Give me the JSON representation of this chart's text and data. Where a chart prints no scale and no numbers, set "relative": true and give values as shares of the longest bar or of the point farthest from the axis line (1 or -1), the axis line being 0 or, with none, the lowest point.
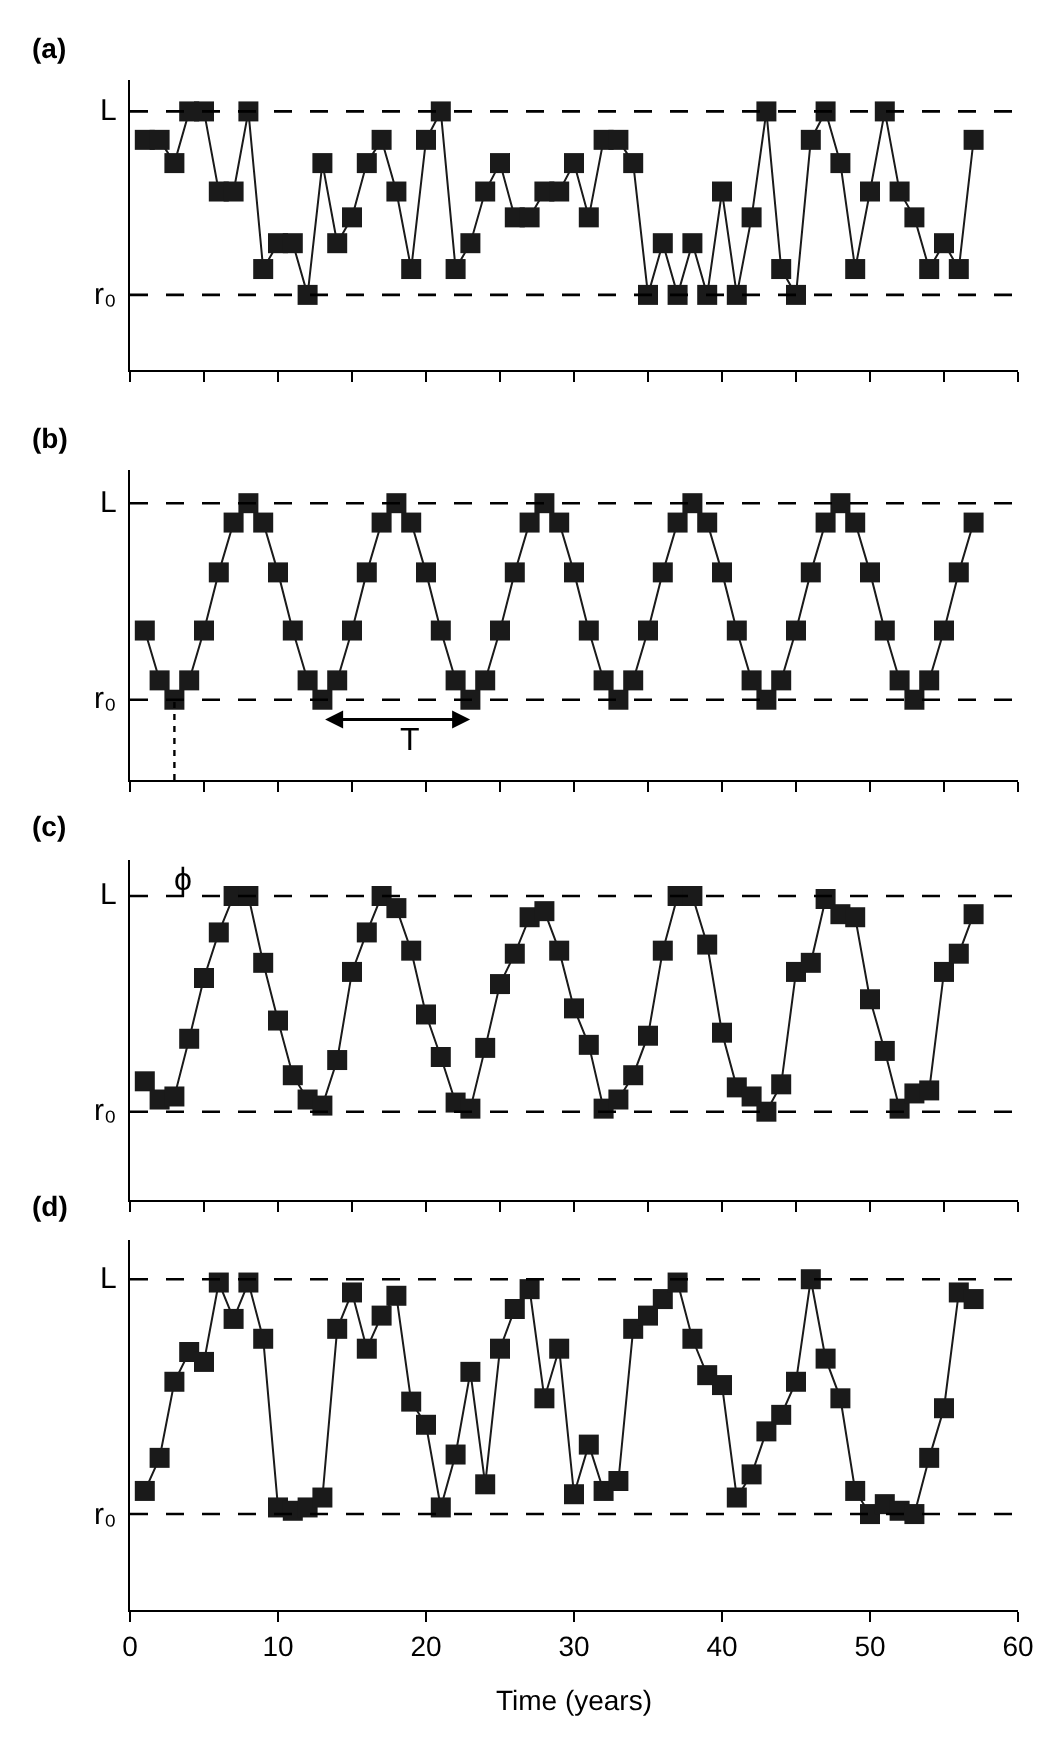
{
  "chart_data": [
    {
      "type": "line",
      "title": "(a)",
      "relative": true,
      "marker": "square",
      "line_style": "solid",
      "tick_labels": false,
      "x": [
        1,
        2,
        3,
        4,
        5,
        6,
        7,
        8,
        9,
        10,
        11,
        12,
        13,
        14,
        15,
        16,
        17,
        18,
        19,
        20,
        21,
        22,
        23,
        24,
        25,
        26,
        27,
        28,
        29,
        30,
        31,
        32,
        33,
        34,
        35,
        36,
        37,
        38,
        39,
        40,
        41,
        42,
        43,
        44,
        45,
        46,
        47,
        48,
        49,
        50,
        51,
        52,
        53,
        54,
        55,
        56,
        57
      ],
      "xlim": [
        0,
        60
      ],
      "xticks": [
        {
          "value": 0,
          "label": null
        },
        {
          "value": 5,
          "label": null
        },
        {
          "value": 10,
          "label": null
        },
        {
          "value": 15,
          "label": null
        },
        {
          "value": 20,
          "label": null
        },
        {
          "value": 25,
          "label": null
        },
        {
          "value": 30,
          "label": null
        },
        {
          "value": 35,
          "label": null
        },
        {
          "value": 40,
          "label": null
        },
        {
          "value": 45,
          "label": null
        },
        {
          "value": 50,
          "label": null
        },
        {
          "value": 55,
          "label": null
        },
        {
          "value": 60,
          "label": null
        }
      ],
      "ref_lines": [
        {
          "axis": "y",
          "value": 1,
          "label": "L",
          "line_style": "dashed",
          "color": "#000000"
        },
        {
          "axis": "y",
          "value": 0.29,
          "label": "r₀",
          "line_style": "dashed",
          "color": "#000000"
        }
      ],
      "series": [
        {
          "color": "#1a1a1a",
          "values": [
            0.89,
            0.89,
            0.8,
            1,
            1,
            0.69,
            0.69,
            1,
            0.39,
            0.49,
            0.49,
            0.29,
            0.8,
            0.49,
            0.59,
            0.8,
            0.89,
            0.69,
            0.39,
            0.89,
            1,
            0.39,
            0.49,
            0.69,
            0.8,
            0.59,
            0.59,
            0.69,
            0.69,
            0.8,
            0.59,
            0.89,
            0.89,
            0.8,
            0.29,
            0.49,
            0.29,
            0.49,
            0.29,
            0.69,
            0.29,
            0.59,
            1,
            0.39,
            0.29,
            0.89,
            1,
            0.8,
            0.39,
            0.69,
            1,
            0.69,
            0.59,
            0.39,
            0.49,
            0.39,
            0.89
          ]
        }
      ]
    },
    {
      "type": "line",
      "title": "(b)",
      "relative": true,
      "marker": "square",
      "line_style": "solid",
      "tick_labels": false,
      "x": [
        1,
        2,
        3,
        4,
        5,
        6,
        7,
        8,
        9,
        10,
        11,
        12,
        13,
        14,
        15,
        16,
        17,
        18,
        19,
        20,
        21,
        22,
        23,
        24,
        25,
        26,
        27,
        28,
        29,
        30,
        31,
        32,
        33,
        34,
        35,
        36,
        37,
        38,
        39,
        40,
        41,
        42,
        43,
        44,
        45,
        46,
        47,
        48,
        49,
        50,
        51,
        52,
        53,
        54,
        55,
        56,
        57
      ],
      "xlim": [
        0,
        60
      ],
      "xticks": [
        {
          "value": 0,
          "label": null
        },
        {
          "value": 5,
          "label": null
        },
        {
          "value": 10,
          "label": null
        },
        {
          "value": 15,
          "label": null
        },
        {
          "value": 20,
          "label": null
        },
        {
          "value": 25,
          "label": null
        },
        {
          "value": 30,
          "label": null
        },
        {
          "value": 35,
          "label": null
        },
        {
          "value": 40,
          "label": null
        },
        {
          "value": 45,
          "label": null
        },
        {
          "value": 50,
          "label": null
        },
        {
          "value": 55,
          "label": null
        },
        {
          "value": 60,
          "label": null
        }
      ],
      "ref_lines": [
        {
          "axis": "y",
          "value": 1,
          "label": "L",
          "line_style": "dashed",
          "color": "#000000"
        },
        {
          "axis": "y",
          "value": 0.29,
          "label": "r₀",
          "line_style": "dashed",
          "color": "#000000"
        }
      ],
      "annotations": [
        "T"
      ],
      "series": [
        {
          "color": "#1a1a1a",
          "values": [
            0.54,
            0.36,
            0.29,
            0.36,
            0.54,
            0.75,
            0.93,
            1,
            0.93,
            0.75,
            0.54,
            0.36,
            0.29,
            0.36,
            0.54,
            0.75,
            0.93,
            1,
            0.93,
            0.75,
            0.54,
            0.36,
            0.29,
            0.36,
            0.54,
            0.75,
            0.93,
            1,
            0.93,
            0.75,
            0.54,
            0.36,
            0.29,
            0.36,
            0.54,
            0.75,
            0.93,
            1,
            0.93,
            0.75,
            0.54,
            0.36,
            0.29,
            0.36,
            0.54,
            0.75,
            0.93,
            1,
            0.93,
            0.75,
            0.54,
            0.36,
            0.29,
            0.36,
            0.54,
            0.75,
            0.93
          ]
        },
        {
          "type": "line",
          "color": "#000000",
          "x": [
            3,
            3
          ],
          "values": [
            0,
            0.29
          ],
          "marker": "none",
          "line_style": "dotted"
        }
      ]
    },
    {
      "type": "line",
      "title": "(c)",
      "relative": true,
      "marker": "square",
      "line_style": "solid",
      "tick_labels": false,
      "x": [
        1,
        2,
        3,
        4,
        5,
        6,
        7,
        8,
        9,
        10,
        11,
        12,
        13,
        14,
        15,
        16,
        17,
        18,
        19,
        20,
        21,
        22,
        23,
        24,
        25,
        26,
        27,
        28,
        29,
        30,
        31,
        32,
        33,
        34,
        35,
        36,
        37,
        38,
        39,
        40,
        41,
        42,
        43,
        44,
        45,
        46,
        47,
        48,
        49,
        50,
        51,
        52,
        53,
        54,
        55,
        56,
        57
      ],
      "xlim": [
        0,
        60
      ],
      "xticks": [
        {
          "value": 0,
          "label": null
        },
        {
          "value": 5,
          "label": null
        },
        {
          "value": 10,
          "label": null
        },
        {
          "value": 15,
          "label": null
        },
        {
          "value": 20,
          "label": null
        },
        {
          "value": 25,
          "label": null
        },
        {
          "value": 30,
          "label": null
        },
        {
          "value": 35,
          "label": null
        },
        {
          "value": 40,
          "label": null
        },
        {
          "value": 45,
          "label": null
        },
        {
          "value": 50,
          "label": null
        },
        {
          "value": 55,
          "label": null
        },
        {
          "value": 60,
          "label": null
        }
      ],
      "ref_lines": [
        {
          "axis": "y",
          "value": 1,
          "label": "L",
          "line_style": "dashed",
          "color": "#000000"
        },
        {
          "axis": "y",
          "value": 0.29,
          "label": "r₀",
          "line_style": "dashed",
          "color": "#000000"
        }
      ],
      "annotations": [
        "ϕ"
      ],
      "series": [
        {
          "color": "#1a1a1a",
          "values": [
            0.39,
            0.33,
            0.34,
            0.53,
            0.73,
            0.88,
            1,
            1,
            0.78,
            0.59,
            0.41,
            0.33,
            0.31,
            0.46,
            0.75,
            0.88,
            1,
            0.96,
            0.82,
            0.61,
            0.47,
            0.32,
            0.3,
            0.5,
            0.71,
            0.81,
            0.93,
            0.95,
            0.82,
            0.63,
            0.51,
            0.3,
            0.33,
            0.41,
            0.54,
            0.82,
            1,
            1,
            0.84,
            0.55,
            0.37,
            0.34,
            0.29,
            0.38,
            0.75,
            0.78,
            0.99,
            0.94,
            0.93,
            0.66,
            0.49,
            0.3,
            0.35,
            0.36,
            0.75,
            0.81,
            0.94
          ]
        }
      ]
    },
    {
      "type": "line",
      "title": "(d)",
      "relative": true,
      "xlabel": "Time (years)",
      "marker": "square",
      "line_style": "solid",
      "tick_labels": "x",
      "x": [
        1,
        2,
        3,
        4,
        5,
        6,
        7,
        8,
        9,
        10,
        11,
        12,
        13,
        14,
        15,
        16,
        17,
        18,
        19,
        20,
        21,
        22,
        23,
        24,
        25,
        26,
        27,
        28,
        29,
        30,
        31,
        32,
        33,
        34,
        35,
        36,
        37,
        38,
        39,
        40,
        41,
        42,
        43,
        44,
        45,
        46,
        47,
        48,
        49,
        50,
        51,
        52,
        53,
        54,
        55,
        56,
        57
      ],
      "xlim": [
        0,
        60
      ],
      "xticks": [
        0,
        10,
        20,
        30,
        40,
        50,
        60
      ],
      "ref_lines": [
        {
          "axis": "y",
          "value": 1,
          "label": "L",
          "line_style": "dashed",
          "color": "#000000"
        },
        {
          "axis": "y",
          "value": 0.29,
          "label": "r₀",
          "line_style": "dashed",
          "color": "#000000"
        }
      ],
      "series": [
        {
          "color": "#1a1a1a",
          "values": [
            0.36,
            0.46,
            0.69,
            0.78,
            0.75,
            0.99,
            0.88,
            0.99,
            0.82,
            0.31,
            0.3,
            0.31,
            0.34,
            0.85,
            0.96,
            0.79,
            0.89,
            0.95,
            0.63,
            0.56,
            0.31,
            0.47,
            0.72,
            0.38,
            0.79,
            0.91,
            0.97,
            0.64,
            0.79,
            0.35,
            0.5,
            0.36,
            0.39,
            0.85,
            0.89,
            0.94,
            0.99,
            0.82,
            0.71,
            0.68,
            0.34,
            0.41,
            0.54,
            0.59,
            0.69,
            1,
            0.76,
            0.64,
            0.36,
            0.29,
            0.32,
            0.3,
            0.29,
            0.46,
            0.61,
            0.96,
            0.94
          ]
        }
      ]
    }
  ]
}
